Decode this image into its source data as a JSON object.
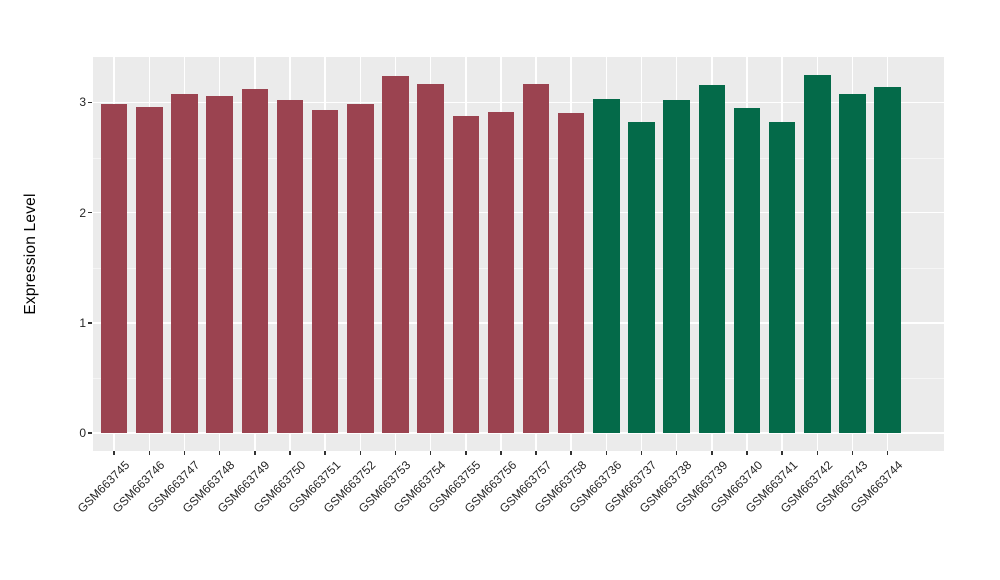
{
  "chart_data": {
    "type": "bar",
    "title": "",
    "xlabel": "",
    "ylabel": "Expression Level",
    "yticks": [
      0,
      1,
      2,
      3
    ],
    "ylim": [
      0,
      3.4
    ],
    "grid": "major-and-minor",
    "legend_position": "none",
    "categories": [
      "GSM663745",
      "GSM663746",
      "GSM663747",
      "GSM663748",
      "GSM663749",
      "GSM663750",
      "GSM663751",
      "GSM663752",
      "GSM663753",
      "GSM663754",
      "GSM663755",
      "GSM663756",
      "GSM663757",
      "GSM663758",
      "GSM663736",
      "GSM663737",
      "GSM663738",
      "GSM663739",
      "GSM663740",
      "GSM663741",
      "GSM663742",
      "GSM663743",
      "GSM663744"
    ],
    "values": [
      2.99,
      2.96,
      3.08,
      3.06,
      3.12,
      3.02,
      2.93,
      2.99,
      3.24,
      3.17,
      2.88,
      2.91,
      3.17,
      2.9,
      3.03,
      2.82,
      3.02,
      3.16,
      2.95,
      2.82,
      3.25,
      3.08,
      3.14
    ],
    "groups": [
      "group1",
      "group1",
      "group1",
      "group1",
      "group1",
      "group1",
      "group1",
      "group1",
      "group1",
      "group1",
      "group1",
      "group1",
      "group1",
      "group1",
      "group2",
      "group2",
      "group2",
      "group2",
      "group2",
      "group2",
      "group2",
      "group2",
      "group2"
    ],
    "group_colors": {
      "group1": "#9B4350",
      "group2": "#046A49"
    },
    "panel_background": "#EBEBEB",
    "grid_major_color": "#FFFFFF",
    "grid_minor_color": "#F5F5F5",
    "tick_mark_color": "#333333",
    "tick_label_color": "#262626",
    "axis_title_color": "#000000",
    "figure_background": "#FFFFFF"
  }
}
